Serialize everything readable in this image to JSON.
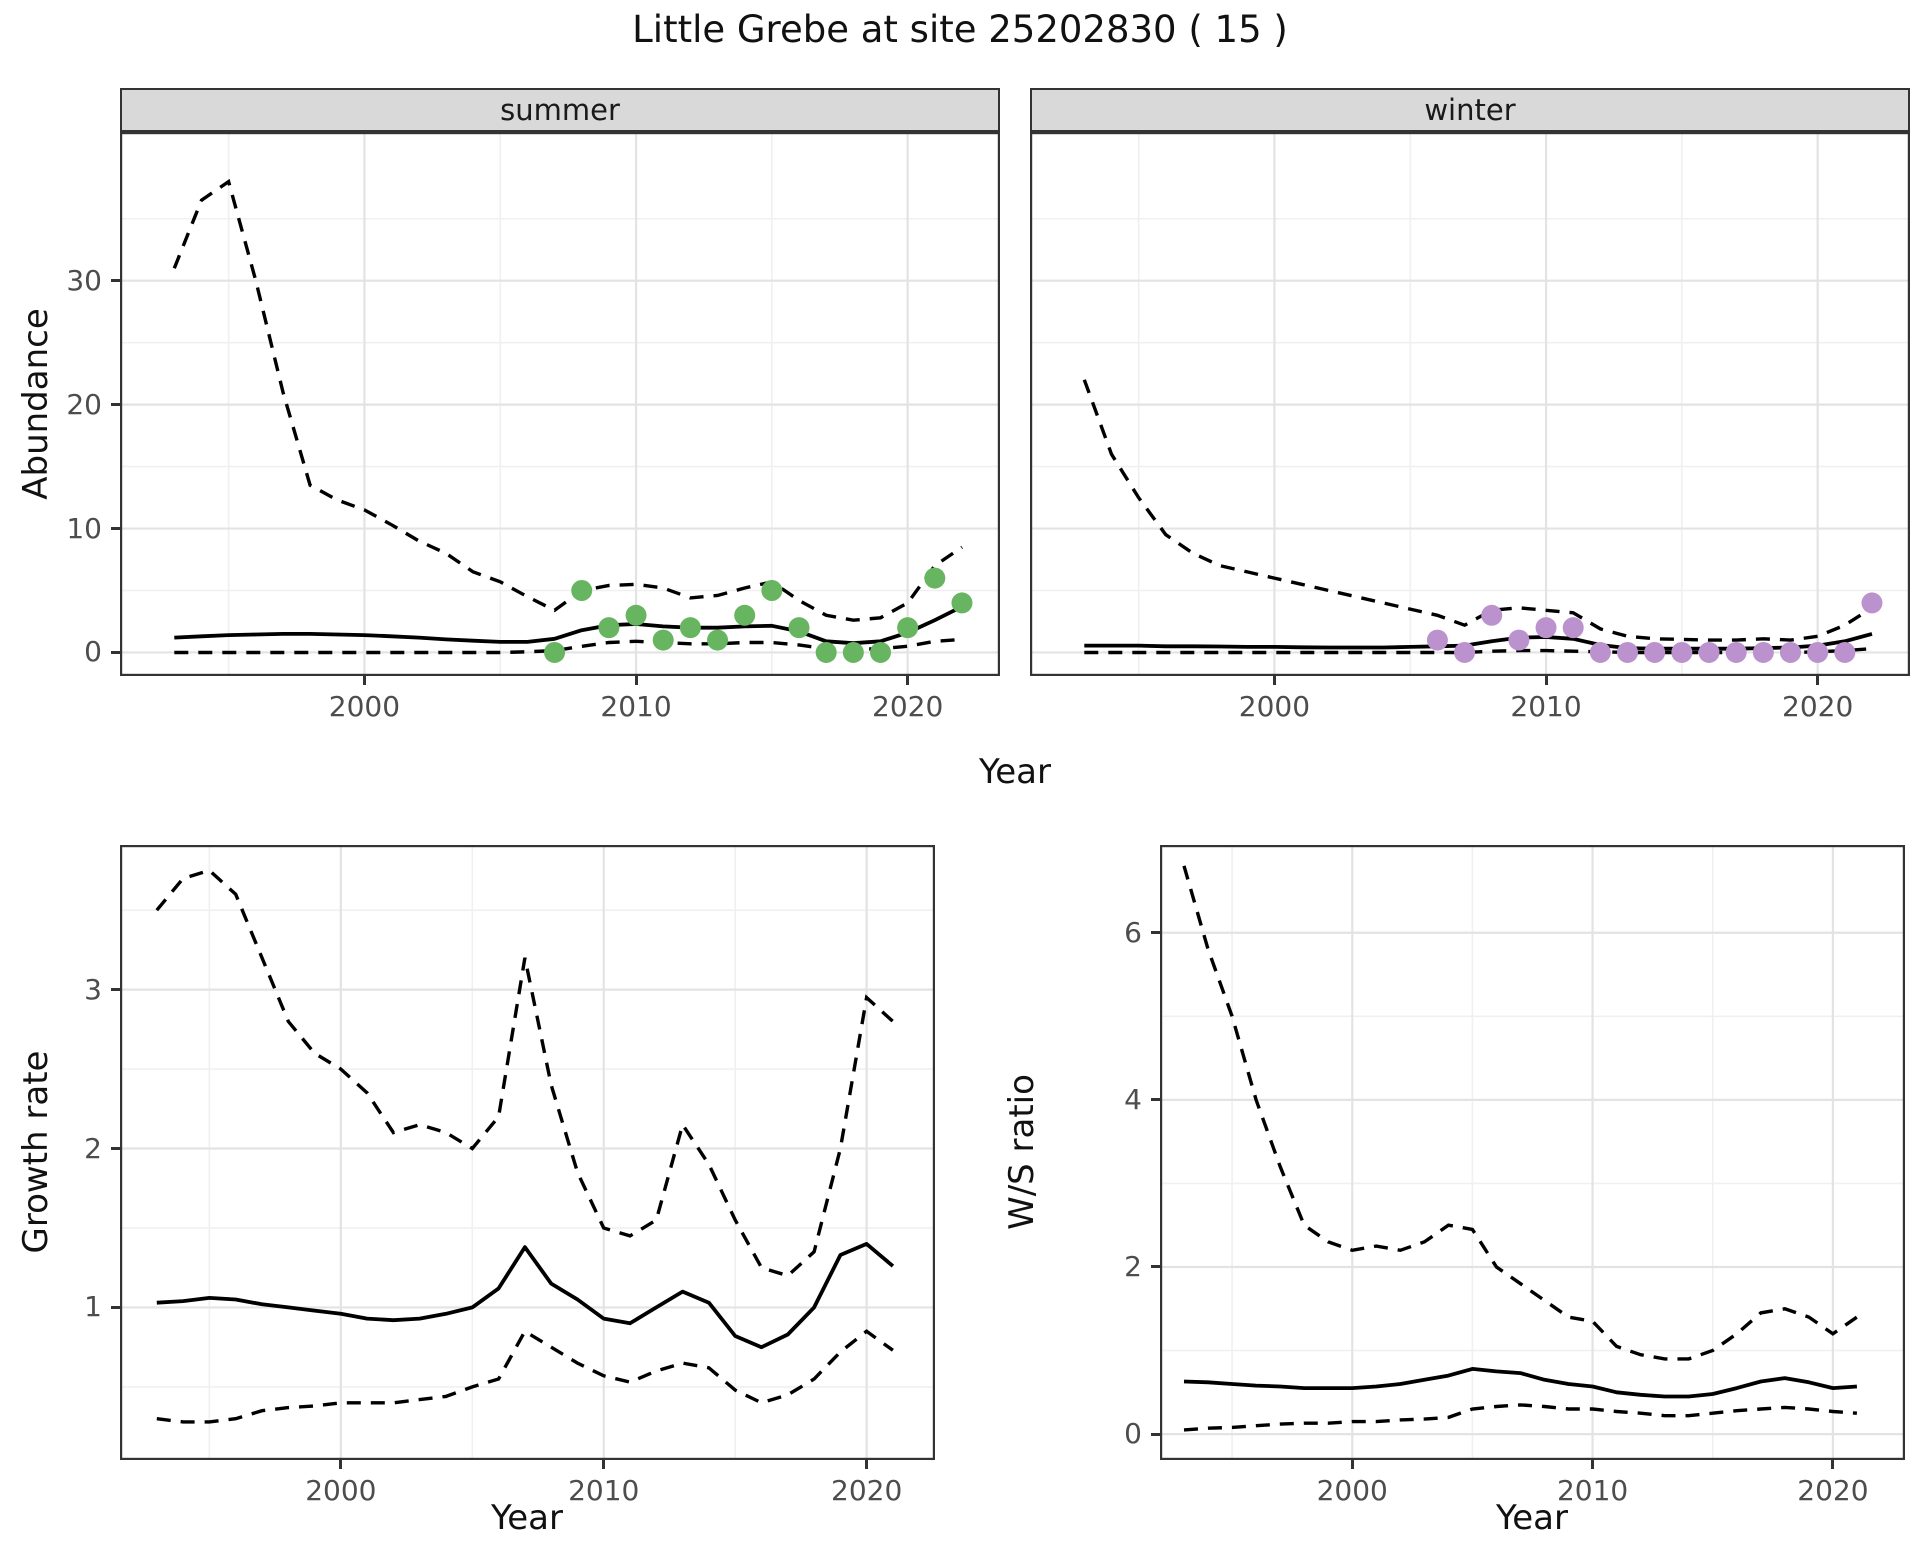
{
  "title": "Little Grebe at site 25202830 ( 15 )",
  "top_row": {
    "ylabel": "Abundance",
    "xlabel": "Year"
  },
  "bottom_left": {
    "ylabel": "Growth rate",
    "xlabel": "Year"
  },
  "bottom_right": {
    "ylabel": "W/S ratio",
    "xlabel": "Year"
  },
  "colors": {
    "summer_point": "#67b561",
    "winter_point": "#bb92cd",
    "line": "#000000",
    "grid_major": "#e3e3e3",
    "grid_minor": "#f0f0f0",
    "strip_bg": "#d9d9d9",
    "panel_border": "#333333",
    "tick_label": "#4d4d4d"
  },
  "chart_data": [
    {
      "id": "summer",
      "type": "line",
      "facet_label": "summer",
      "x_domain": [
        1991.0,
        2023.4
      ],
      "y_domain": [
        -1.9,
        42
      ],
      "x_ticks": [
        2000,
        2010,
        2020
      ],
      "x_minor": [
        1995,
        2005,
        2015
      ],
      "y_ticks": [
        0,
        10,
        20,
        30
      ],
      "y_minor": [
        5,
        15,
        25,
        35
      ],
      "show_y_labels": true,
      "years": [
        1993,
        1994,
        1995,
        1996,
        1997,
        1998,
        1999,
        2000,
        2001,
        2002,
        2003,
        2004,
        2005,
        2006,
        2007,
        2008,
        2009,
        2010,
        2011,
        2012,
        2013,
        2014,
        2015,
        2016,
        2017,
        2018,
        2019,
        2020,
        2021,
        2022
      ],
      "mean": [
        1.2,
        1.3,
        1.4,
        1.45,
        1.5,
        1.5,
        1.45,
        1.4,
        1.3,
        1.2,
        1.05,
        0.95,
        0.85,
        0.85,
        1.1,
        1.8,
        2.2,
        2.3,
        2.1,
        2.0,
        2.0,
        2.1,
        2.15,
        1.7,
        0.9,
        0.75,
        0.9,
        1.6,
        2.6,
        3.7
      ],
      "upper": [
        31,
        36.5,
        38,
        30,
        21,
        13.5,
        12.3,
        11.5,
        10.3,
        9,
        8,
        6.5,
        5.7,
        4.5,
        3.4,
        5,
        5.4,
        5.5,
        5.2,
        4.4,
        4.6,
        5.2,
        5.7,
        4.2,
        3,
        2.6,
        2.8,
        4,
        7,
        8.5
      ],
      "lower": [
        0,
        0,
        0,
        0,
        0,
        0,
        0,
        0,
        0,
        0,
        0,
        0,
        0,
        0.05,
        0.15,
        0.5,
        0.8,
        0.9,
        0.8,
        0.7,
        0.7,
        0.8,
        0.8,
        0.6,
        0.3,
        0.25,
        0.3,
        0.5,
        0.9,
        1.05
      ],
      "points_years": [
        2007,
        2008,
        2009,
        2010,
        2011,
        2012,
        2013,
        2014,
        2015,
        2016,
        2017,
        2018,
        2019,
        2020,
        2021,
        2022
      ],
      "points_values": [
        0,
        5,
        2,
        3,
        1,
        2,
        1,
        3,
        5,
        2,
        0,
        0,
        0,
        2,
        6,
        4
      ],
      "point_color_key": "summer_point"
    },
    {
      "id": "winter",
      "type": "line",
      "facet_label": "winter",
      "x_domain": [
        1991.0,
        2023.4
      ],
      "y_domain": [
        -1.9,
        42
      ],
      "x_ticks": [
        2000,
        2010,
        2020
      ],
      "x_minor": [
        1995,
        2005,
        2015
      ],
      "y_ticks": [
        0,
        10,
        20,
        30
      ],
      "y_minor": [
        5,
        15,
        25,
        35
      ],
      "show_y_labels": false,
      "years": [
        1993,
        1994,
        1995,
        1996,
        1997,
        1998,
        1999,
        2000,
        2001,
        2002,
        2003,
        2004,
        2005,
        2006,
        2007,
        2008,
        2009,
        2010,
        2011,
        2012,
        2013,
        2014,
        2015,
        2016,
        2017,
        2018,
        2019,
        2020,
        2021,
        2022
      ],
      "mean": [
        0.55,
        0.55,
        0.55,
        0.5,
        0.5,
        0.48,
        0.45,
        0.45,
        0.42,
        0.4,
        0.4,
        0.4,
        0.45,
        0.5,
        0.55,
        0.9,
        1.2,
        1.25,
        1.1,
        0.6,
        0.35,
        0.3,
        0.3,
        0.3,
        0.3,
        0.35,
        0.4,
        0.55,
        0.9,
        1.5
      ],
      "upper": [
        22,
        16,
        12.5,
        9.5,
        8,
        7,
        6.5,
        6,
        5.5,
        5,
        4.5,
        4,
        3.5,
        3,
        2.2,
        3.4,
        3.6,
        3.4,
        3.2,
        1.9,
        1.3,
        1.1,
        1.05,
        1,
        1,
        1.1,
        1,
        1.3,
        2.2,
        3.6
      ],
      "lower": [
        0,
        0,
        0,
        0,
        0,
        0,
        0,
        0,
        0,
        0,
        0,
        0,
        0,
        0,
        0,
        0.1,
        0.15,
        0.15,
        0.1,
        0.05,
        0,
        0,
        0,
        0,
        0,
        0,
        0,
        0.05,
        0.15,
        0.3
      ],
      "points_years": [
        2006,
        2007,
        2008,
        2009,
        2010,
        2011,
        2012,
        2013,
        2014,
        2015,
        2016,
        2017,
        2018,
        2019,
        2020,
        2021,
        2022
      ],
      "points_values": [
        1,
        0,
        3,
        1,
        2,
        2,
        0,
        0,
        0,
        0,
        0,
        0,
        0,
        0,
        0,
        0,
        4
      ],
      "point_color_key": "winter_point"
    },
    {
      "id": "growth",
      "type": "line",
      "facet_label": null,
      "x_domain": [
        1991.6,
        2022.6
      ],
      "y_domain": [
        0.04,
        3.91
      ],
      "x_ticks": [
        2000,
        2010,
        2020
      ],
      "x_minor": [
        1995,
        2005,
        2015
      ],
      "y_ticks": [
        1,
        2,
        3
      ],
      "y_minor": [
        0.5,
        1.5,
        2.5,
        3.5
      ],
      "show_y_labels": true,
      "years": [
        1993,
        1994,
        1995,
        1996,
        1997,
        1998,
        1999,
        2000,
        2001,
        2002,
        2003,
        2004,
        2005,
        2006,
        2007,
        2008,
        2009,
        2010,
        2011,
        2012,
        2013,
        2014,
        2015,
        2016,
        2017,
        2018,
        2019,
        2020,
        2021
      ],
      "mean": [
        1.03,
        1.04,
        1.06,
        1.05,
        1.02,
        1.0,
        0.98,
        0.96,
        0.93,
        0.92,
        0.93,
        0.96,
        1.0,
        1.12,
        1.38,
        1.15,
        1.05,
        0.93,
        0.9,
        1.0,
        1.1,
        1.03,
        0.82,
        0.75,
        0.83,
        1.0,
        1.33,
        1.4,
        1.26
      ],
      "upper": [
        3.5,
        3.7,
        3.75,
        3.6,
        3.2,
        2.8,
        2.6,
        2.5,
        2.35,
        2.1,
        2.15,
        2.1,
        2.0,
        2.2,
        3.2,
        2.4,
        1.85,
        1.5,
        1.45,
        1.55,
        2.15,
        1.9,
        1.55,
        1.25,
        1.2,
        1.35,
        2.0,
        2.95,
        2.8
      ],
      "lower": [
        0.3,
        0.28,
        0.28,
        0.3,
        0.35,
        0.37,
        0.38,
        0.4,
        0.4,
        0.4,
        0.42,
        0.44,
        0.5,
        0.55,
        0.85,
        0.75,
        0.65,
        0.57,
        0.53,
        0.6,
        0.65,
        0.62,
        0.48,
        0.4,
        0.45,
        0.55,
        0.72,
        0.85,
        0.73
      ],
      "points_years": [],
      "points_values": [],
      "point_color_key": null
    },
    {
      "id": "ws",
      "type": "line",
      "facet_label": null,
      "x_domain": [
        1992.0,
        2023.0
      ],
      "y_domain": [
        -0.31,
        7.05
      ],
      "x_ticks": [
        2000,
        2010,
        2020
      ],
      "x_minor": [
        1995,
        2005,
        2015
      ],
      "y_ticks": [
        0,
        2,
        4,
        6
      ],
      "y_minor": [
        1,
        3,
        5
      ],
      "show_y_labels": true,
      "years": [
        1993,
        1994,
        1995,
        1996,
        1997,
        1998,
        1999,
        2000,
        2001,
        2002,
        2003,
        2004,
        2005,
        2006,
        2007,
        2008,
        2009,
        2010,
        2011,
        2012,
        2013,
        2014,
        2015,
        2016,
        2017,
        2018,
        2019,
        2020,
        2021
      ],
      "mean": [
        0.63,
        0.62,
        0.6,
        0.58,
        0.57,
        0.55,
        0.55,
        0.55,
        0.57,
        0.6,
        0.65,
        0.7,
        0.78,
        0.75,
        0.73,
        0.65,
        0.6,
        0.57,
        0.5,
        0.47,
        0.45,
        0.45,
        0.48,
        0.55,
        0.63,
        0.67,
        0.62,
        0.55,
        0.57
      ],
      "upper": [
        6.8,
        5.8,
        5.0,
        4.0,
        3.2,
        2.5,
        2.3,
        2.2,
        2.25,
        2.2,
        2.3,
        2.5,
        2.45,
        2.0,
        1.8,
        1.6,
        1.4,
        1.35,
        1.05,
        0.95,
        0.9,
        0.9,
        1.0,
        1.2,
        1.45,
        1.5,
        1.4,
        1.2,
        1.4
      ],
      "lower": [
        0.05,
        0.07,
        0.08,
        0.1,
        0.12,
        0.13,
        0.13,
        0.15,
        0.15,
        0.17,
        0.18,
        0.2,
        0.3,
        0.33,
        0.35,
        0.33,
        0.3,
        0.3,
        0.27,
        0.25,
        0.22,
        0.22,
        0.25,
        0.28,
        0.3,
        0.32,
        0.3,
        0.27,
        0.25
      ],
      "points_years": [],
      "points_values": [],
      "point_color_key": null
    }
  ]
}
